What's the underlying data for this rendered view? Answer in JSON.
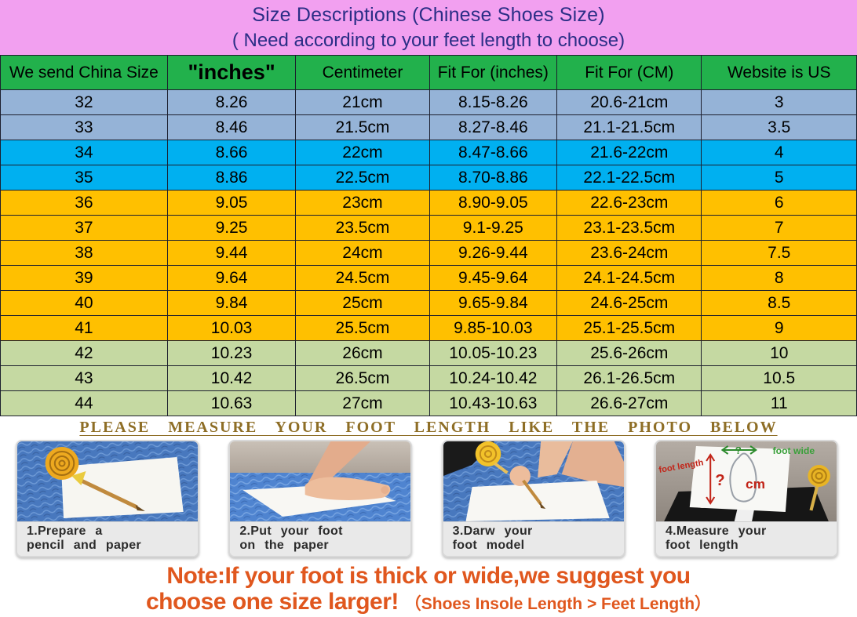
{
  "title": {
    "line1": "Size Descriptions  (Chinese Shoes Size)",
    "line2": "( Need according to your feet length to choose)"
  },
  "table": {
    "headers": [
      "We send China Size",
      "\"inches\"",
      "Centimeter",
      "Fit For (inches)",
      "Fit For (CM)",
      "Website is  US"
    ],
    "rows": [
      {
        "group": "steel",
        "cells": [
          "32",
          "8.26",
          "21cm",
          "8.15-8.26",
          "20.6-21cm",
          "3"
        ]
      },
      {
        "group": "steel",
        "cells": [
          "33",
          "8.46",
          "21.5cm",
          "8.27-8.46",
          "21.1-21.5cm",
          "3.5"
        ]
      },
      {
        "group": "cyan",
        "cells": [
          "34",
          "8.66",
          "22cm",
          "8.47-8.66",
          "21.6-22cm",
          "4"
        ]
      },
      {
        "group": "cyan",
        "cells": [
          "35",
          "8.86",
          "22.5cm",
          "8.70-8.86",
          "22.1-22.5cm",
          "5"
        ]
      },
      {
        "group": "amber",
        "cells": [
          "36",
          "9.05",
          "23cm",
          "8.90-9.05",
          "22.6-23cm",
          "6"
        ]
      },
      {
        "group": "amber",
        "cells": [
          "37",
          "9.25",
          "23.5cm",
          "9.1-9.25",
          "23.1-23.5cm",
          "7"
        ]
      },
      {
        "group": "amber",
        "cells": [
          "38",
          "9.44",
          "24cm",
          "9.26-9.44",
          "23.6-24cm",
          "7.5"
        ]
      },
      {
        "group": "amber",
        "cells": [
          "39",
          "9.64",
          "24.5cm",
          "9.45-9.64",
          "24.1-24.5cm",
          "8"
        ]
      },
      {
        "group": "amber",
        "cells": [
          "40",
          "9.84",
          "25cm",
          "9.65-9.84",
          "24.6-25cm",
          "8.5"
        ]
      },
      {
        "group": "amber",
        "cells": [
          "41",
          "10.03",
          "25.5cm",
          "9.85-10.03",
          "25.1-25.5cm",
          "9"
        ]
      },
      {
        "group": "olive",
        "cells": [
          "42",
          "10.23",
          "26cm",
          "10.05-10.23",
          "25.6-26cm",
          "10"
        ]
      },
      {
        "group": "olive",
        "cells": [
          "43",
          "10.42",
          "26.5cm",
          "10.24-10.42",
          "26.1-26.5cm",
          "10.5"
        ]
      },
      {
        "group": "olive",
        "cells": [
          "44",
          "10.63",
          "27cm",
          "10.43-10.63",
          "26.6-27cm",
          "11"
        ]
      }
    ]
  },
  "colors": {
    "pink_band": "#F2A0F0",
    "title_text": "#2B2E86",
    "header_green": "#22B14C",
    "row_groups": {
      "steel": "#95B3D7",
      "cyan": "#00B0F0",
      "amber": "#FFC000",
      "olive": "#C5D9A2"
    },
    "measure_heading_text": "#8E6E26",
    "note_text": "#E0571E"
  },
  "measure_heading": "PLEASE MEASURE YOUR FOOT LENGTH LIKE THE PHOTO BELOW",
  "steps": [
    {
      "caption_line1": "1.Prepare a",
      "caption_line2": "pencil and paper"
    },
    {
      "caption_line1": "2.Put your foot",
      "caption_line2": "on the paper"
    },
    {
      "caption_line1": "3.Darw your",
      "caption_line2": "foot model"
    },
    {
      "caption_line1": "4.Measure your",
      "caption_line2": "foot length"
    }
  ],
  "photo4_annotations": {
    "foot_length_label": "foot length",
    "length_question": "?",
    "cm_label": "cm",
    "width_question": "?",
    "foot_wide_label": "foot wide"
  },
  "note": {
    "line1": "Note:If your foot is thick or wide,we suggest you",
    "line2_main": "choose one size larger!",
    "line2_suffix": "（Shoes Insole Length > Feet Length）"
  }
}
